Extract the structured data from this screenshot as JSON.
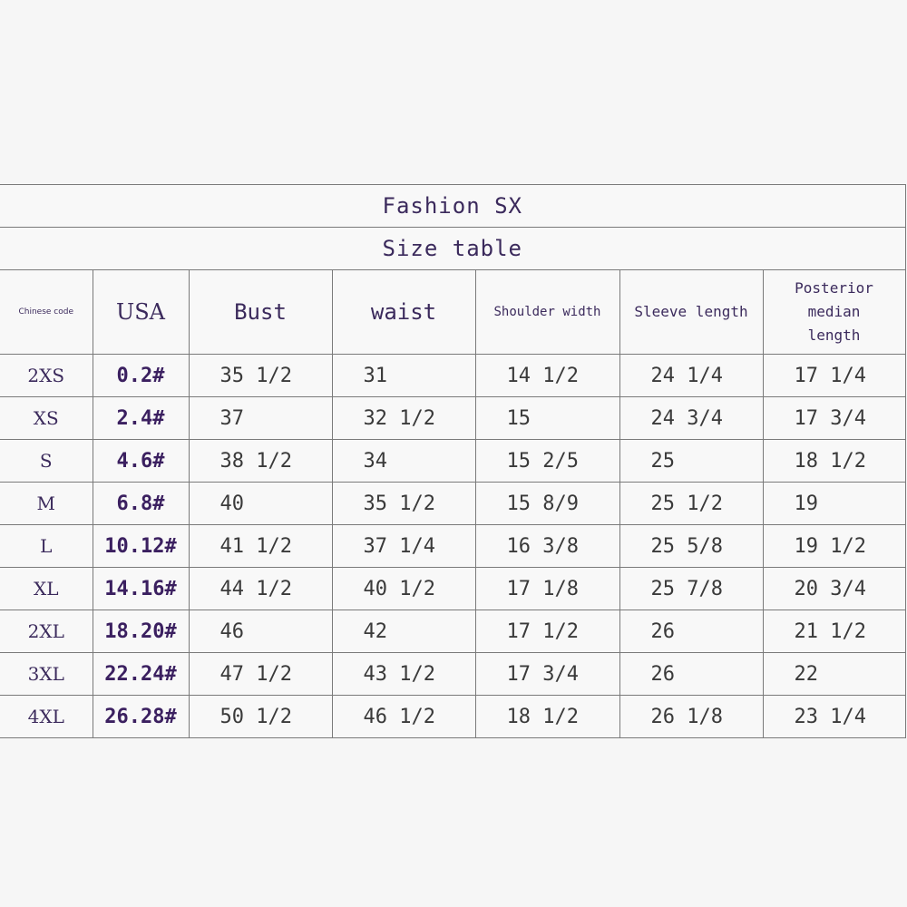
{
  "table": {
    "title": "Fashion SX",
    "subtitle": "Size table",
    "header": [
      "Chinese code",
      "USA",
      "Bust",
      "waist",
      "Shoulder width",
      "Sleeve length",
      "Posterior median length"
    ],
    "rows": [
      [
        "2XS",
        "0.2#",
        "35 1/2",
        "31",
        "14 1/2",
        "24 1/4",
        "17 1/4"
      ],
      [
        "XS",
        "2.4#",
        "37",
        "32 1/2",
        "15",
        "24 3/4",
        "17 3/4"
      ],
      [
        "S",
        "4.6#",
        "38 1/2",
        "34",
        "15 2/5",
        "25",
        "18 1/2"
      ],
      [
        "M",
        "6.8#",
        "40",
        "35 1/2",
        "15 8/9",
        "25 1/2",
        "19"
      ],
      [
        "L",
        "10.12#",
        "41 1/2",
        "37 1/4",
        "16 3/8",
        "25 5/8",
        "19 1/2"
      ],
      [
        "XL",
        "14.16#",
        "44 1/2",
        "40 1/2",
        "17 1/8",
        "25 7/8",
        "20 3/4"
      ],
      [
        "2XL",
        "18.20#",
        "46",
        "42",
        "17 1/2",
        "26",
        "21 1/2"
      ],
      [
        "3XL",
        "22.24#",
        "47 1/2",
        "43 1/2",
        "17 3/4",
        "26",
        "22"
      ],
      [
        "4XL",
        "26.28#",
        "50 1/2",
        "46 1/2",
        "18 1/2",
        "26 1/8",
        "23 1/4"
      ]
    ]
  }
}
